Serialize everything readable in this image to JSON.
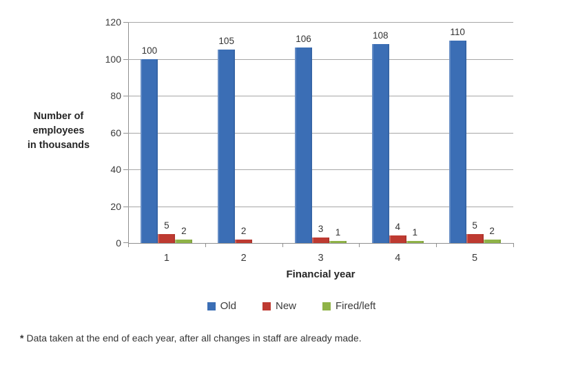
{
  "chart_data": {
    "type": "bar",
    "categories": [
      "1",
      "2",
      "3",
      "4",
      "5"
    ],
    "series": [
      {
        "name": "Old",
        "color": "#3b6eb5",
        "values": [
          100,
          105,
          106,
          108,
          110
        ]
      },
      {
        "name": "New",
        "color": "#be3a31",
        "values": [
          5,
          2,
          3,
          4,
          5
        ]
      },
      {
        "name": "Fired/left",
        "color": "#8fb347",
        "values": [
          2,
          0,
          1,
          1,
          2
        ]
      }
    ],
    "title": "",
    "xlabel": "Financial year",
    "ylabel": "Number of\nemployees\nin thousands",
    "ylim": [
      0,
      120
    ],
    "ytick_step": 20,
    "grid": true,
    "value_labels": true,
    "legend_position": "bottom",
    "gridline_color": "#a6a6a6",
    "axis_color": "#8f8f8f"
  },
  "footnote": {
    "marker": "*",
    "text": "Data taken at the end of each year, after all changes in staff are already made."
  }
}
